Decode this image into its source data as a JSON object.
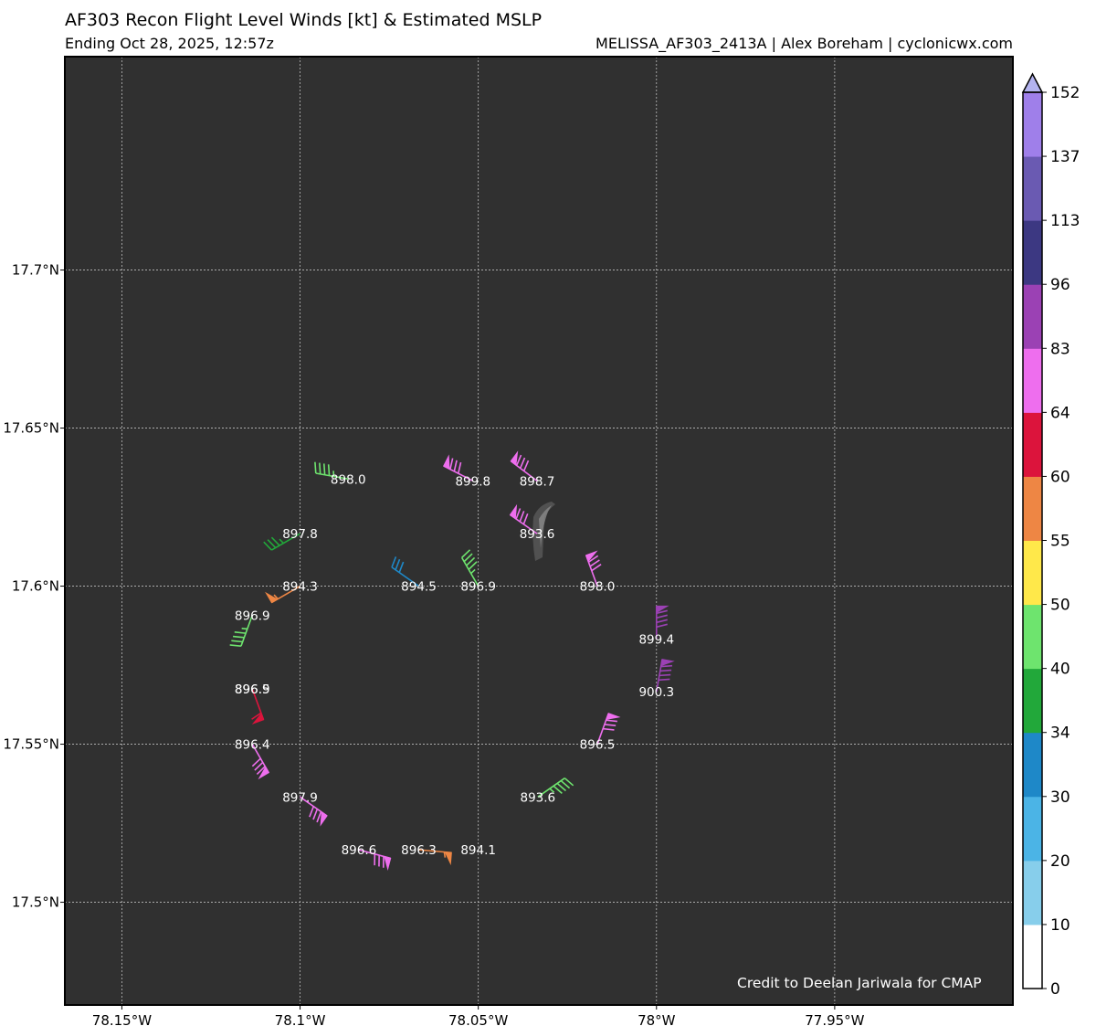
{
  "header": {
    "title": "AF303 Recon Flight Level Winds [kt] & Estimated MSLP",
    "subtitle_left": "Ending Oct 28, 2025, 12:57z",
    "subtitle_right": "MELISSA_AF303_2413A | Alex Boreham | cyclonicwx.com"
  },
  "credit": "Credit to Deelan Jariwala for CMAP",
  "colors": {
    "map_background": "#303030",
    "grid": "#bdbdbd"
  },
  "chart_data": {
    "type": "scatter",
    "description_type": "wind-barb map",
    "xlim": [
      -78.166,
      -77.9
    ],
    "ylim": [
      17.4675,
      17.7675
    ],
    "x_ticks": [
      {
        "value": -78.15,
        "label": "78.15°W"
      },
      {
        "value": -78.1,
        "label": "78.1°W"
      },
      {
        "value": -78.05,
        "label": "78.05°W"
      },
      {
        "value": -78.0,
        "label": "78°W"
      },
      {
        "value": -77.95,
        "label": "77.95°W"
      }
    ],
    "y_ticks": [
      {
        "value": 17.5,
        "label": "17.5°N"
      },
      {
        "value": 17.55,
        "label": "17.55°N"
      },
      {
        "value": 17.6,
        "label": "17.6°N"
      },
      {
        "value": 17.65,
        "label": "17.65°N"
      },
      {
        "value": 17.7,
        "label": "17.7°N"
      }
    ],
    "grid": true,
    "colorbar": {
      "label": "kt",
      "levels": [
        0,
        10,
        20,
        30,
        34,
        40,
        50,
        55,
        60,
        64,
        83,
        96,
        113,
        137,
        152
      ],
      "tick_labels": [
        "0",
        "10",
        "20",
        "30",
        "34",
        "40",
        "50",
        "55",
        "60",
        "64",
        "83",
        "96",
        "113",
        "137",
        "152"
      ],
      "colors": [
        "#ffffff",
        "#87ceeb",
        "#4bb4e6",
        "#1e88c8",
        "#22a83a",
        "#6ee46e",
        "#ffe84a",
        "#ee8644",
        "#dc143c",
        "#ee6eee",
        "#9b41b4",
        "#3c3882",
        "#6a5ab2",
        "#9f7fea"
      ],
      "extend_color": "#b4b4f0"
    },
    "observations": [
      {
        "lon": -78.0865,
        "lat": 17.6339,
        "pressure": "898.0",
        "wind_kt": 45,
        "dir_deg": 280
      },
      {
        "lon": -78.0515,
        "lat": 17.6333,
        "pressure": "899.8",
        "wind_kt": 80,
        "dir_deg": 297
      },
      {
        "lon": -78.0335,
        "lat": 17.6333,
        "pressure": "898.7",
        "wind_kt": 80,
        "dir_deg": 307
      },
      {
        "lon": -78.0335,
        "lat": 17.6166,
        "pressure": "893.6",
        "wind_kt": 80,
        "dir_deg": 305
      },
      {
        "lon": -78.1,
        "lat": 17.6166,
        "pressure": "897.8",
        "wind_kt": 35,
        "dir_deg": 240
      },
      {
        "lon": -78.1,
        "lat": 17.6,
        "pressure": "894.3",
        "wind_kt": 55,
        "dir_deg": 240
      },
      {
        "lon": -78.0667,
        "lat": 17.6,
        "pressure": "894.5",
        "wind_kt": 30,
        "dir_deg": 305
      },
      {
        "lon": -78.05,
        "lat": 17.6,
        "pressure": "896.9",
        "wind_kt": 45,
        "dir_deg": 330
      },
      {
        "lon": -78.0166,
        "lat": 17.6,
        "pressure": "898.0",
        "wind_kt": 80,
        "dir_deg": 340
      },
      {
        "lon": -78.0,
        "lat": 17.5833,
        "pressure": "899.4",
        "wind_kt": 90,
        "dir_deg": 0
      },
      {
        "lon": -78.0,
        "lat": 17.5666,
        "pressure": "900.3",
        "wind_kt": 90,
        "dir_deg": 10
      },
      {
        "lon": -78.0166,
        "lat": 17.55,
        "pressure": "896.5",
        "wind_kt": 80,
        "dir_deg": 20
      },
      {
        "lon": -78.0333,
        "lat": 17.5333,
        "pressure": "893.6",
        "wind_kt": 45,
        "dir_deg": 55
      },
      {
        "lon": -78.1134,
        "lat": 17.5908,
        "pressure": "896.9",
        "wind_kt": 45,
        "dir_deg": 200
      },
      {
        "lon": -78.1134,
        "lat": 17.5675,
        "pressure": "896.9",
        "wind_kt": 60,
        "dir_deg": 160
      },
      {
        "lon": -78.1134,
        "lat": 17.5675,
        "pressure": "896.5",
        "wind_kt": 0,
        "dir_deg": 0
      },
      {
        "lon": -78.1134,
        "lat": 17.55,
        "pressure": "896.4",
        "wind_kt": 80,
        "dir_deg": 150
      },
      {
        "lon": -78.1,
        "lat": 17.5333,
        "pressure": "897.9",
        "wind_kt": 80,
        "dir_deg": 125
      },
      {
        "lon": -78.0835,
        "lat": 17.5166,
        "pressure": "896.6",
        "wind_kt": 80,
        "dir_deg": 105
      },
      {
        "lon": -78.0667,
        "lat": 17.5166,
        "pressure": "896.3",
        "wind_kt": 55,
        "dir_deg": 95
      },
      {
        "lon": -78.05,
        "lat": 17.5166,
        "pressure": "894.1",
        "wind_kt": 0,
        "dir_deg": 0
      }
    ]
  }
}
